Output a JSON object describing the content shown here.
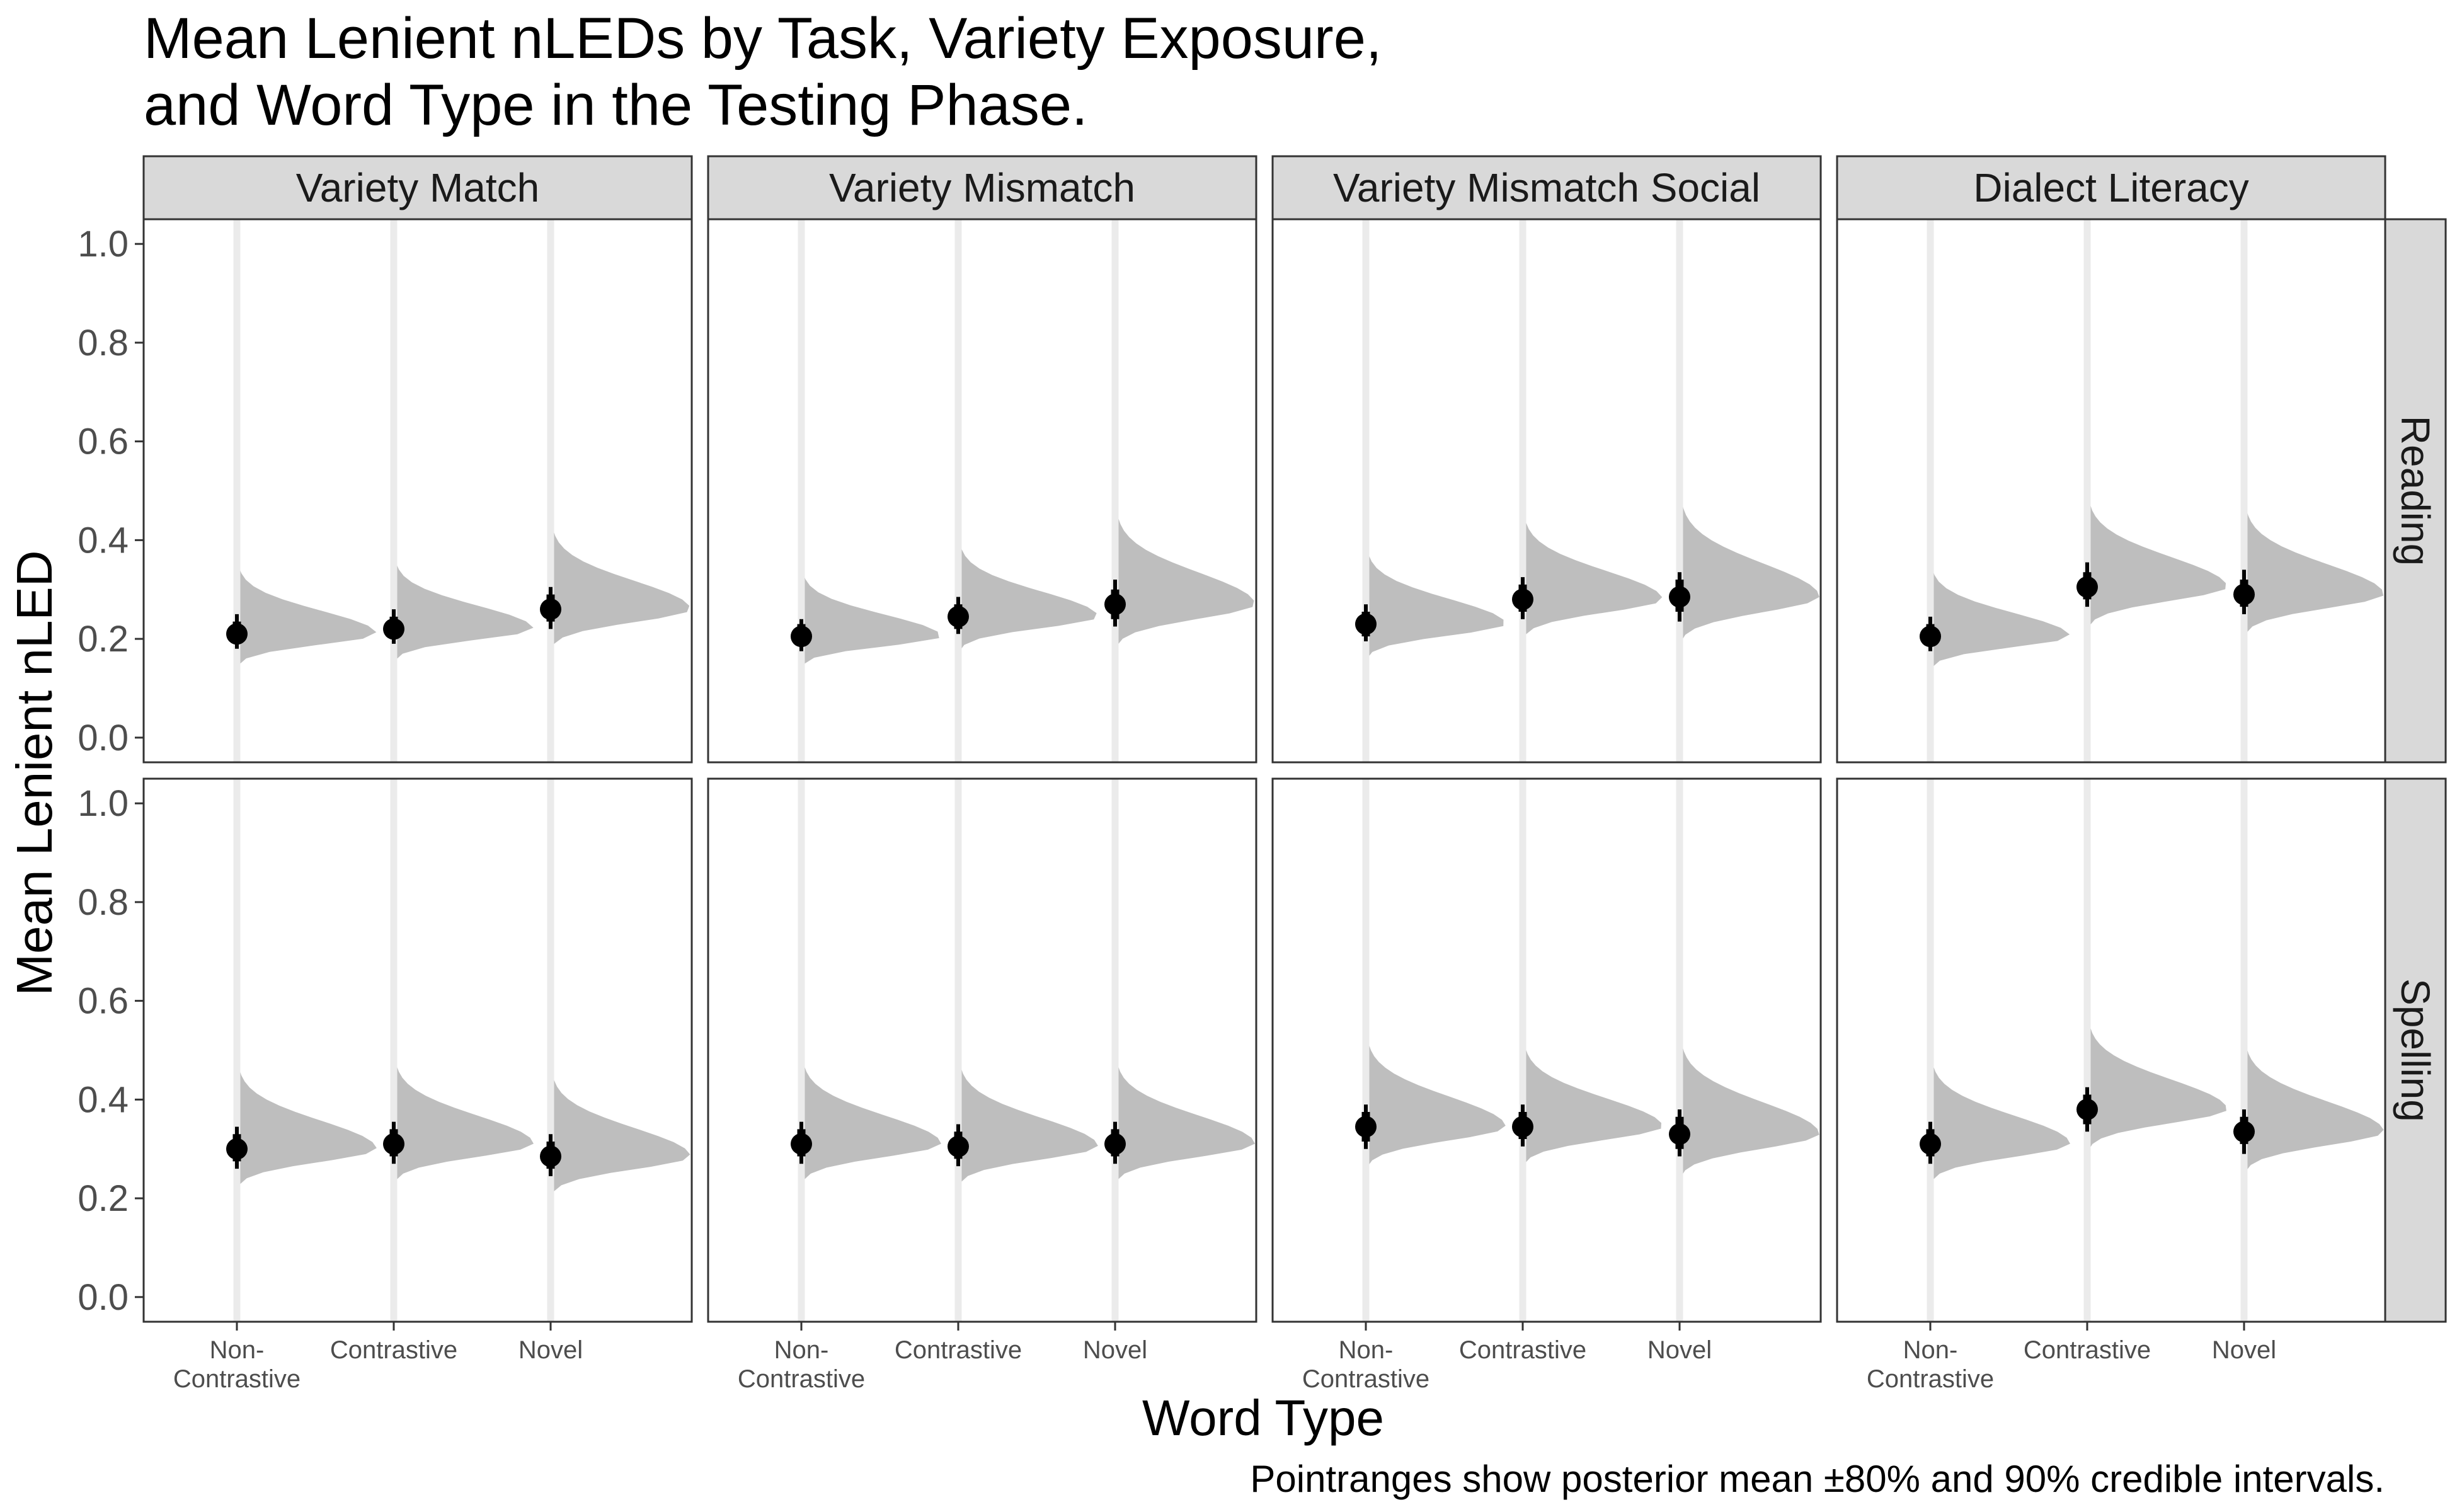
{
  "chart_data": {
    "type": "halfeye-pointrange",
    "title": [
      "Mean Lenient nLEDs by Task, Variety Exposure,",
      "and Word Type in the Testing Phase."
    ],
    "xlabel": "Word Type",
    "ylabel": "Mean Lenient nLED",
    "caption": "Pointranges show posterior mean ±80% and 90% credible intervals.",
    "ylim": [
      -0.05,
      1.05
    ],
    "yticks": [
      "0.0",
      "0.2",
      "0.4",
      "0.6",
      "0.8",
      "1.0"
    ],
    "categories": [
      [
        "Non-",
        "Contrastive"
      ],
      [
        "Contrastive"
      ],
      [
        "Novel"
      ]
    ],
    "columns": [
      "Variety Match",
      "Variety Mismatch",
      "Variety Mismatch Social",
      "Dialect Literacy"
    ],
    "rows": [
      "Reading",
      "Spelling"
    ],
    "grid": false,
    "colors": {
      "density": "#bebebe",
      "slab_line": "#ebebeb",
      "point": "#000000",
      "strip": "#d9d9d9"
    },
    "panels": [
      {
        "row": "Reading",
        "column": "Variety Match",
        "points": [
          {
            "category": "Non-Contrastive",
            "mean": 0.21,
            "ci80": [
              0.19,
              0.235
            ],
            "ci90": [
              0.18,
              0.25
            ]
          },
          {
            "category": "Contrastive",
            "mean": 0.22,
            "ci80": [
              0.2,
              0.245
            ],
            "ci90": [
              0.19,
              0.26
            ]
          },
          {
            "category": "Novel",
            "mean": 0.26,
            "ci80": [
              0.235,
              0.29
            ],
            "ci90": [
              0.22,
              0.305
            ]
          }
        ]
      },
      {
        "row": "Reading",
        "column": "Variety Mismatch",
        "points": [
          {
            "category": "Non-Contrastive",
            "mean": 0.205,
            "ci80": [
              0.185,
              0.23
            ],
            "ci90": [
              0.175,
              0.24
            ]
          },
          {
            "category": "Contrastive",
            "mean": 0.245,
            "ci80": [
              0.22,
              0.27
            ],
            "ci90": [
              0.21,
              0.285
            ]
          },
          {
            "category": "Novel",
            "mean": 0.27,
            "ci80": [
              0.24,
              0.3
            ],
            "ci90": [
              0.225,
              0.32
            ]
          }
        ]
      },
      {
        "row": "Reading",
        "column": "Variety Mismatch Social",
        "points": [
          {
            "category": "Non-Contrastive",
            "mean": 0.23,
            "ci80": [
              0.205,
              0.255
            ],
            "ci90": [
              0.195,
              0.27
            ]
          },
          {
            "category": "Contrastive",
            "mean": 0.28,
            "ci80": [
              0.255,
              0.31
            ],
            "ci90": [
              0.24,
              0.325
            ]
          },
          {
            "category": "Novel",
            "mean": 0.285,
            "ci80": [
              0.255,
              0.32
            ],
            "ci90": [
              0.235,
              0.335
            ]
          }
        ]
      },
      {
        "row": "Reading",
        "column": "Dialect Literacy",
        "points": [
          {
            "category": "Non-Contrastive",
            "mean": 0.205,
            "ci80": [
              0.185,
              0.23
            ],
            "ci90": [
              0.175,
              0.245
            ]
          },
          {
            "category": "Contrastive",
            "mean": 0.305,
            "ci80": [
              0.28,
              0.335
            ],
            "ci90": [
              0.265,
              0.355
            ]
          },
          {
            "category": "Novel",
            "mean": 0.29,
            "ci80": [
              0.265,
              0.32
            ],
            "ci90": [
              0.25,
              0.34
            ]
          }
        ]
      },
      {
        "row": "Spelling",
        "column": "Variety Match",
        "points": [
          {
            "category": "Non-Contrastive",
            "mean": 0.3,
            "ci80": [
              0.275,
              0.33
            ],
            "ci90": [
              0.26,
              0.345
            ]
          },
          {
            "category": "Contrastive",
            "mean": 0.31,
            "ci80": [
              0.285,
              0.34
            ],
            "ci90": [
              0.27,
              0.355
            ]
          },
          {
            "category": "Novel",
            "mean": 0.285,
            "ci80": [
              0.26,
              0.315
            ],
            "ci90": [
              0.245,
              0.33
            ]
          }
        ]
      },
      {
        "row": "Spelling",
        "column": "Variety Mismatch",
        "points": [
          {
            "category": "Non-Contrastive",
            "mean": 0.31,
            "ci80": [
              0.285,
              0.34
            ],
            "ci90": [
              0.27,
              0.355
            ]
          },
          {
            "category": "Contrastive",
            "mean": 0.305,
            "ci80": [
              0.28,
              0.335
            ],
            "ci90": [
              0.265,
              0.35
            ]
          },
          {
            "category": "Novel",
            "mean": 0.31,
            "ci80": [
              0.285,
              0.34
            ],
            "ci90": [
              0.27,
              0.355
            ]
          }
        ]
      },
      {
        "row": "Spelling",
        "column": "Variety Mismatch Social",
        "points": [
          {
            "category": "Non-Contrastive",
            "mean": 0.345,
            "ci80": [
              0.315,
              0.375
            ],
            "ci90": [
              0.3,
              0.39
            ]
          },
          {
            "category": "Contrastive",
            "mean": 0.345,
            "ci80": [
              0.32,
              0.375
            ],
            "ci90": [
              0.305,
              0.39
            ]
          },
          {
            "category": "Novel",
            "mean": 0.33,
            "ci80": [
              0.3,
              0.365
            ],
            "ci90": [
              0.285,
              0.38
            ]
          }
        ]
      },
      {
        "row": "Spelling",
        "column": "Dialect Literacy",
        "points": [
          {
            "category": "Non-Contrastive",
            "mean": 0.31,
            "ci80": [
              0.285,
              0.34
            ],
            "ci90": [
              0.27,
              0.355
            ]
          },
          {
            "category": "Contrastive",
            "mean": 0.38,
            "ci80": [
              0.35,
              0.41
            ],
            "ci90": [
              0.335,
              0.425
            ]
          },
          {
            "category": "Novel",
            "mean": 0.335,
            "ci80": [
              0.31,
              0.365
            ],
            "ci90": [
              0.29,
              0.38
            ]
          }
        ]
      }
    ]
  }
}
